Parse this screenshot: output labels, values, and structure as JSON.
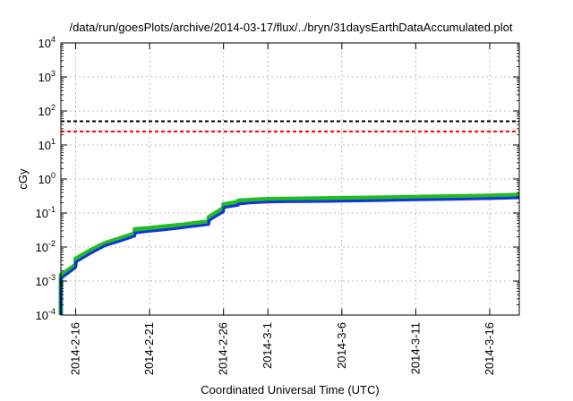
{
  "chart_data": {
    "type": "line",
    "title": "/data/run/goesPlots/archive/2014-03-17/flux/../bryn/31daysEarthDataAccumulated.plot",
    "xlabel": "Coordinated Universal Time (UTC)",
    "ylabel": "cGy",
    "yscale": "log",
    "ylim": [
      0.0001,
      10000
    ],
    "y_ticks": [
      {
        "value": 0.0001,
        "base": "10",
        "exp": "-4"
      },
      {
        "value": 0.001,
        "base": "10",
        "exp": "-3"
      },
      {
        "value": 0.01,
        "base": "10",
        "exp": "-2"
      },
      {
        "value": 0.1,
        "base": "10",
        "exp": "-1"
      },
      {
        "value": 1,
        "base": "10",
        "exp": "0"
      },
      {
        "value": 10,
        "base": "10",
        "exp": "1"
      },
      {
        "value": 100,
        "base": "10",
        "exp": "2"
      },
      {
        "value": 1000,
        "base": "10",
        "exp": "3"
      },
      {
        "value": 10000,
        "base": "10",
        "exp": "4"
      }
    ],
    "xlim": [
      "2014-02-15",
      "2014-03-18"
    ],
    "x_ticks": [
      "2014-2-16",
      "2014-2-21",
      "2014-2-26",
      "2014-3-1",
      "2014-3-6",
      "2014-3-11",
      "2014-3-16"
    ],
    "x_tick_dates": [
      "2014-02-16",
      "2014-02-21",
      "2014-02-26",
      "2014-03-01",
      "2014-03-06",
      "2014-03-11",
      "2014-03-16"
    ],
    "grid": true,
    "thresholds": [
      {
        "value": 50,
        "color": "#000000"
      },
      {
        "value": 25,
        "color": "#ff0000"
      }
    ],
    "series": [
      {
        "color": "#22bb22",
        "x": [
          "2014-02-15",
          "2014-02-15",
          "2014-02-15",
          "2014-02-16",
          "2014-02-16",
          "2014-02-17",
          "2014-02-18",
          "2014-02-19",
          "2014-02-20",
          "2014-02-20",
          "2014-02-21",
          "2014-02-22",
          "2014-02-23",
          "2014-02-24",
          "2014-02-25",
          "2014-02-25",
          "2014-02-26",
          "2014-02-26",
          "2014-02-27",
          "2014-02-27",
          "2014-02-28",
          "2014-03-01",
          "2014-03-02",
          "2014-03-05",
          "2014-03-08",
          "2014-03-11",
          "2014-03-14",
          "2014-03-16",
          "2014-03-18"
        ],
        "y": [
          0.0001,
          0.0005,
          0.0015,
          0.003,
          0.0045,
          0.008,
          0.013,
          0.018,
          0.025,
          0.033,
          0.036,
          0.04,
          0.044,
          0.05,
          0.056,
          0.075,
          0.14,
          0.18,
          0.21,
          0.23,
          0.245,
          0.255,
          0.26,
          0.27,
          0.28,
          0.295,
          0.31,
          0.32,
          0.34
        ]
      },
      {
        "color": "#1133dd",
        "x": [
          "2014-02-15",
          "2014-02-15",
          "2014-02-15",
          "2014-02-16",
          "2014-02-16",
          "2014-02-17",
          "2014-02-18",
          "2014-02-19",
          "2014-02-20",
          "2014-02-20",
          "2014-02-21",
          "2014-02-22",
          "2014-02-23",
          "2014-02-24",
          "2014-02-25",
          "2014-02-25",
          "2014-02-26",
          "2014-02-26",
          "2014-02-27",
          "2014-02-27",
          "2014-02-28",
          "2014-03-01",
          "2014-03-02",
          "2014-03-05",
          "2014-03-08",
          "2014-03-11",
          "2014-03-14",
          "2014-03-16",
          "2014-03-18"
        ],
        "y": [
          0.0001,
          0.0004,
          0.0012,
          0.0025,
          0.0036,
          0.0065,
          0.011,
          0.015,
          0.021,
          0.026,
          0.029,
          0.032,
          0.036,
          0.041,
          0.046,
          0.06,
          0.11,
          0.145,
          0.17,
          0.185,
          0.2,
          0.21,
          0.215,
          0.22,
          0.23,
          0.245,
          0.255,
          0.265,
          0.28
        ]
      }
    ]
  }
}
